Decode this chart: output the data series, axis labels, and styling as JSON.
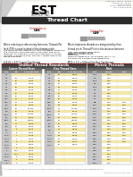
{
  "title": "Thread Chart",
  "background_color": "#f0f0eb",
  "page_bg": "#ffffff",
  "header_bg": "#2a2a2a",
  "header_text_color": "#ffffff",
  "table_section_bg": "#444444",
  "table_header_bg": "#666666",
  "col_yellow": "#f5e9a8",
  "col_gray_size": "#c8c8c8",
  "col_white": "#ffffff",
  "col_light": "#eeeeee",
  "unc_data": [
    [
      "#0",
      "",
      ""
    ],
    [
      "#1",
      "64",
      "0.073"
    ],
    [
      "#2",
      "56",
      "0.086"
    ],
    [
      "#3",
      "48",
      "0.099"
    ],
    [
      "#4",
      "40",
      "0.112"
    ],
    [
      "#5",
      "40",
      "0.125"
    ],
    [
      "#6",
      "32",
      "0.138"
    ],
    [
      "#8",
      "32",
      "0.164"
    ],
    [
      "#10",
      "24",
      "0.190"
    ],
    [
      "#12",
      "24",
      "0.216"
    ],
    [
      "1/4",
      "20",
      "0.250"
    ],
    [
      "5/16",
      "18",
      "0.3125"
    ],
    [
      "3/8",
      "16",
      "0.375"
    ],
    [
      "7/16",
      "14",
      "0.4375"
    ],
    [
      "1/2",
      "13",
      "0.500"
    ],
    [
      "9/16",
      "12",
      "0.5625"
    ],
    [
      "5/8",
      "11",
      "0.625"
    ],
    [
      "3/4",
      "10",
      "0.750"
    ],
    [
      "7/8",
      "9",
      "0.875"
    ],
    [
      "1",
      "8",
      "1.000"
    ],
    [
      "1-1/8",
      "7",
      "1.125"
    ],
    [
      "1-1/4",
      "7",
      "1.250"
    ],
    [
      "1-3/8",
      "6",
      "1.375"
    ],
    [
      "1-1/2",
      "6",
      "1.500"
    ],
    [
      "1-3/4",
      "5",
      "1.750"
    ],
    [
      "2",
      "4-1/2",
      "2.000"
    ],
    [
      "2-1/4",
      "4-1/2",
      "2.250"
    ],
    [
      "2-1/2",
      "4",
      "2.500"
    ],
    [
      "2-3/4",
      "4",
      "2.750"
    ],
    [
      "3",
      "4",
      "3.000"
    ]
  ],
  "unf_data": [
    [
      "#0",
      "80",
      "0.060"
    ],
    [
      "#1",
      "72",
      "0.073"
    ],
    [
      "#2",
      "64",
      "0.086"
    ],
    [
      "#3",
      "56",
      "0.099"
    ],
    [
      "#4",
      "48",
      "0.112"
    ],
    [
      "#5",
      "44",
      "0.125"
    ],
    [
      "#6",
      "40",
      "0.138"
    ],
    [
      "#8",
      "36",
      "0.164"
    ],
    [
      "#10",
      "32",
      "0.190"
    ],
    [
      "#12",
      "28",
      "0.216"
    ],
    [
      "1/4",
      "28",
      "0.250"
    ],
    [
      "5/16",
      "24",
      "0.3125"
    ],
    [
      "3/8",
      "24",
      "0.375"
    ],
    [
      "7/16",
      "20",
      "0.4375"
    ],
    [
      "1/2",
      "20",
      "0.500"
    ],
    [
      "9/16",
      "18",
      "0.5625"
    ],
    [
      "5/8",
      "18",
      "0.625"
    ],
    [
      "3/4",
      "16",
      "0.750"
    ],
    [
      "7/8",
      "14",
      "0.875"
    ],
    [
      "1",
      "12",
      "1.000"
    ],
    [
      "1-1/8",
      "12",
      "1.125"
    ],
    [
      "1-1/4",
      "12",
      "1.250"
    ],
    [
      "1-3/8",
      "12",
      "1.375"
    ],
    [
      "1-1/2",
      "12",
      "1.500"
    ],
    [
      "",
      "",
      ""
    ],
    [
      "",
      "",
      ""
    ],
    [
      "",
      "",
      ""
    ],
    [
      "",
      "",
      ""
    ],
    [
      "",
      "",
      ""
    ],
    [
      "",
      "",
      ""
    ]
  ],
  "metric_data": [
    [
      "M1.6",
      "0.35",
      ""
    ],
    [
      "M2",
      "0.40",
      ""
    ],
    [
      "M2.5",
      "0.45",
      ""
    ],
    [
      "M3",
      "0.50",
      ""
    ],
    [
      "M3.5",
      "0.60",
      ""
    ],
    [
      "M4",
      "0.70",
      ""
    ],
    [
      "M5",
      "0.80",
      ""
    ],
    [
      "M6",
      "1.00",
      ""
    ],
    [
      "M7",
      "1.00",
      ""
    ],
    [
      "M8",
      "1.25",
      "1.00"
    ],
    [
      "M10",
      "1.50",
      "1.25"
    ],
    [
      "M12",
      "1.75",
      "1.25"
    ],
    [
      "M14",
      "2.00",
      "1.50"
    ],
    [
      "M16",
      "2.00",
      "1.50"
    ],
    [
      "M18",
      "2.50",
      "1.50"
    ],
    [
      "M20",
      "2.50",
      "1.50"
    ],
    [
      "M22",
      "2.50",
      "1.50"
    ],
    [
      "M24",
      "3.00",
      "2.00"
    ],
    [
      "M27",
      "3.00",
      "2.00"
    ],
    [
      "M30",
      "3.50",
      "2.00"
    ],
    [
      "M33",
      "3.50",
      "2.00"
    ],
    [
      "M36",
      "4.00",
      "3.00"
    ],
    [
      "M39",
      "4.00",
      "3.00"
    ],
    [
      "M42",
      "4.50",
      ""
    ],
    [
      "M45",
      "4.50",
      ""
    ],
    [
      "M48",
      "5.00",
      ""
    ],
    [
      "M52",
      "5.00",
      ""
    ],
    [
      "M56",
      "5.50",
      ""
    ],
    [
      "M60",
      "5.50",
      ""
    ],
    [
      "M64",
      "6.00",
      ""
    ]
  ]
}
